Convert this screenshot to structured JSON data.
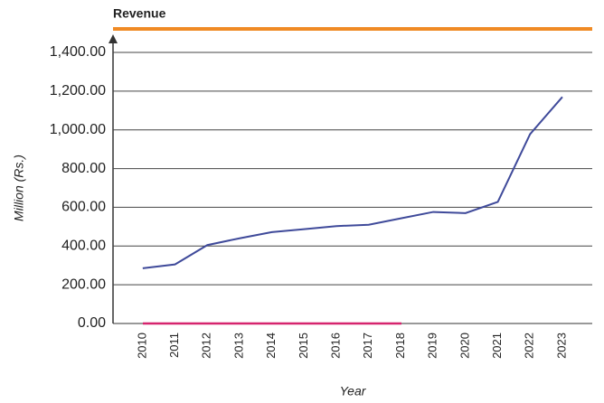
{
  "chart_data": {
    "type": "line",
    "title": "Revenue",
    "x_label": "Year",
    "y_label": "Million (Rs.)",
    "categories": [
      "2010",
      "2011",
      "2012",
      "2013",
      "2014",
      "2015",
      "2016",
      "2017",
      "2018",
      "2019",
      "2020",
      "2021",
      "2022",
      "2023"
    ],
    "series": [
      {
        "name": "Revenue",
        "color": "#3f4a9a",
        "values": [
          285,
          305,
          405,
          440,
          472,
          487,
          503,
          510,
          543,
          576,
          570,
          628,
          978,
          1170
        ]
      }
    ],
    "ylim": [
      0,
      1400
    ],
    "yticks": [
      {
        "value": 0,
        "label": "0.00"
      },
      {
        "value": 200,
        "label": "200.00"
      },
      {
        "value": 400,
        "label": "400.00"
      },
      {
        "value": 600,
        "label": "600.00"
      },
      {
        "value": 800,
        "label": "800.00"
      },
      {
        "value": 1000,
        "label": "1,000.00"
      },
      {
        "value": 1200,
        "label": "1,200.00"
      },
      {
        "value": 1400,
        "label": "1,400.00"
      }
    ],
    "grid": true
  }
}
